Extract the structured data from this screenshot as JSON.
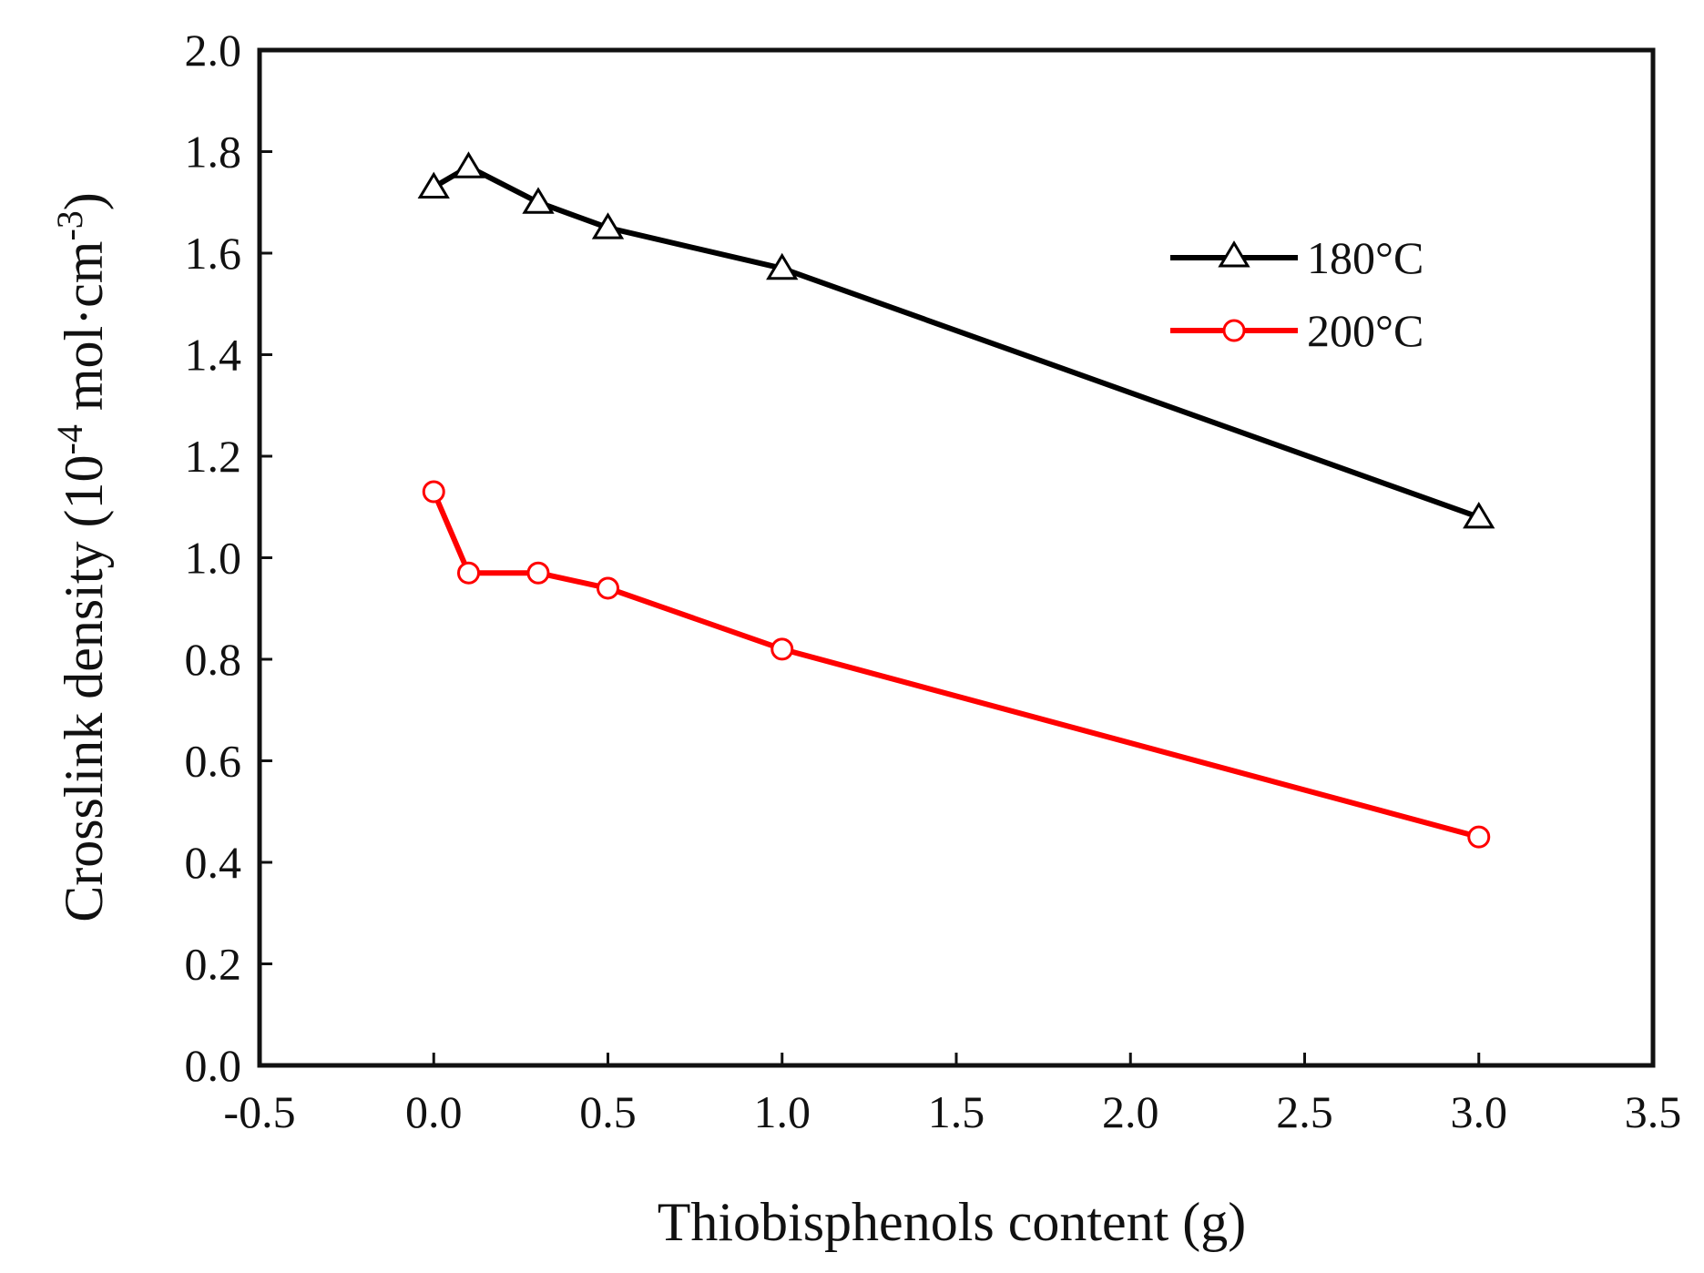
{
  "chart_data": {
    "type": "line",
    "title": "",
    "xlabel": "Thiobisphenols content (g)",
    "ylabel_main": "Crosslink density (10",
    "ylabel_exp1": "-4",
    "ylabel_mid": " mol·cm",
    "ylabel_exp2": "-3",
    "ylabel_end": ")",
    "xlim": [
      -0.5,
      3.5
    ],
    "ylim": [
      0.0,
      2.0
    ],
    "xticks": [
      -0.5,
      0.0,
      0.5,
      1.0,
      1.5,
      2.0,
      2.5,
      3.0,
      3.5
    ],
    "xtick_labels": [
      "-0.5",
      "0.0",
      "0.5",
      "1.0",
      "1.5",
      "2.0",
      "2.5",
      "3.0",
      "3.5"
    ],
    "yticks": [
      0.0,
      0.2,
      0.4,
      0.6,
      0.8,
      1.0,
      1.2,
      1.4,
      1.6,
      1.8,
      2.0
    ],
    "ytick_labels": [
      "0.0",
      "0.2",
      "0.4",
      "0.6",
      "0.8",
      "1.0",
      "1.2",
      "1.4",
      "1.6",
      "1.8",
      "2.0"
    ],
    "grid": false,
    "legend_position": "top-right",
    "series": [
      {
        "name": "180°C",
        "color": "#000000",
        "marker": "triangle",
        "x": [
          0.0,
          0.1,
          0.3,
          0.5,
          1.0,
          3.0
        ],
        "y": [
          1.73,
          1.77,
          1.7,
          1.65,
          1.57,
          1.08
        ]
      },
      {
        "name": "200°C",
        "color": "#ff0000",
        "marker": "circle",
        "x": [
          0.0,
          0.1,
          0.3,
          0.5,
          1.0,
          3.0
        ],
        "y": [
          1.13,
          0.97,
          0.97,
          0.94,
          0.82,
          0.45
        ]
      }
    ]
  }
}
